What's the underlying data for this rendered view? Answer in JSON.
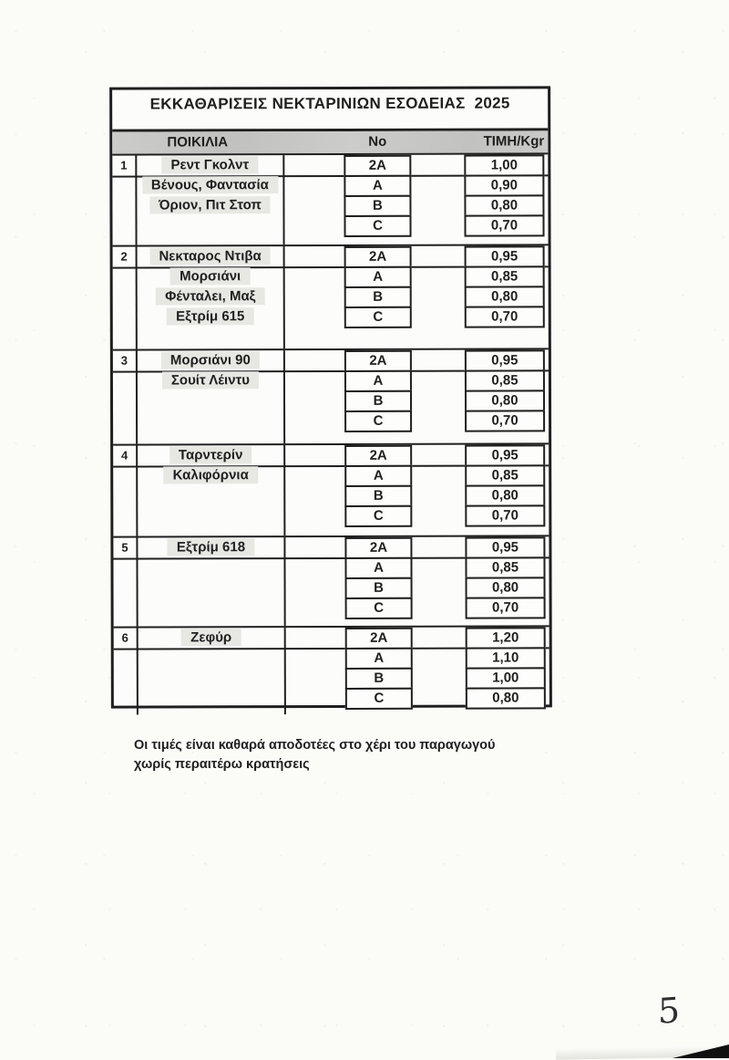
{
  "document": {
    "title": "ΕΚΚΑΘΑΡΙΣΕΙΣ ΝΕΚΤΑΡΙΝΙΩΝ ΕΣΟΔΕΙΑΣ  2025",
    "headers": {
      "variety": "ΠΟΙΚΙΛΙΑ",
      "number": "No",
      "price_per_kg": "ΤΙΜΗ/Kgr"
    },
    "grade_labels": [
      "2A",
      "A",
      "B",
      "C"
    ],
    "groups": [
      {
        "num": "1",
        "varieties": [
          "Ρεντ Γκολντ",
          "Βένους, Φαντασία",
          "Όριον, Πιτ Στοπ"
        ],
        "prices": [
          "1,00",
          "0,90",
          "0,80",
          "0,70"
        ]
      },
      {
        "num": "2",
        "varieties": [
          "Νεκταρος Ντιβα",
          "Μορσιάνι",
          "Φένταλει, Μαξ",
          "Εξτρίμ 615"
        ],
        "prices": [
          "0,95",
          "0,85",
          "0,80",
          "0,70"
        ]
      },
      {
        "num": "3",
        "varieties": [
          "Μορσιάνι 90",
          "Σουίτ Λέιντυ"
        ],
        "prices": [
          "0,95",
          "0,85",
          "0,80",
          "0,70"
        ]
      },
      {
        "num": "4",
        "varieties": [
          "Ταρντερίν",
          "Καλιφόρνια"
        ],
        "prices": [
          "0,95",
          "0,85",
          "0,80",
          "0,70"
        ]
      },
      {
        "num": "5",
        "varieties": [
          "Εξτρίμ 618"
        ],
        "prices": [
          "0,95",
          "0,85",
          "0,80",
          "0,70"
        ]
      },
      {
        "num": "6",
        "varieties": [
          "Ζεφύρ"
        ],
        "prices": [
          "1,20",
          "1,10",
          "1,00",
          "0,80"
        ]
      }
    ],
    "footnote": {
      "line1": "Οι τιμές είναι καθαρά αποδοτέες στο χέρι του παραγωγού",
      "line2": "χωρίς περαιτέρω κρατήσεις"
    },
    "page_number": "5"
  },
  "colors": {
    "paper": "#fbfbf8",
    "ink": "#1f1f1f",
    "header_band": "#c6c6c4",
    "variety_highlight": "#e7e7e3"
  }
}
